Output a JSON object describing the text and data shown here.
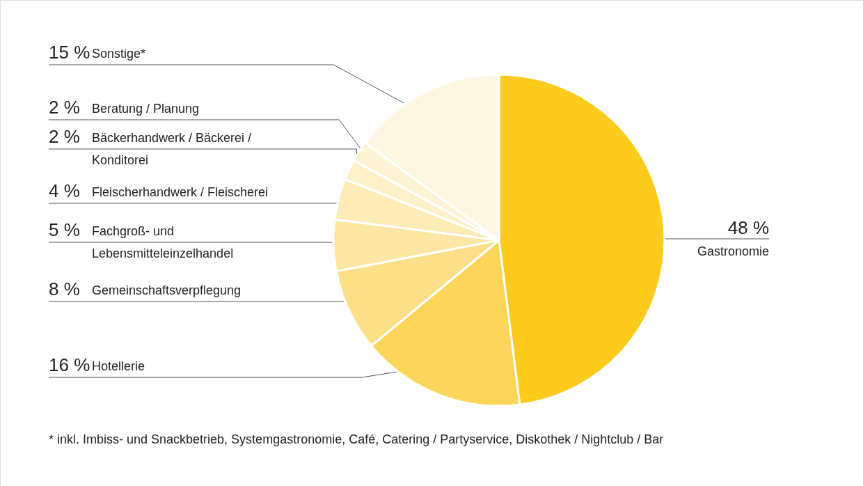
{
  "chart_data": {
    "type": "pie",
    "categories": [
      "Gastronomie",
      "Hotellerie",
      "Gemeinschaftsverpflegung",
      "Fachgroß- und\nLebensmitteleinzelhandel",
      "Fleischerhandwerk / Fleischerei",
      "Bäckerhandwerk / Bäckerei /\nKonditorei",
      "Beratung / Planung",
      "Sonstige*"
    ],
    "values": [
      48,
      16,
      8,
      5,
      4,
      2,
      2,
      15
    ],
    "colors": [
      "#fccb1e",
      "#fdd55a",
      "#fddf88",
      "#fee6a4",
      "#feebb5",
      "#fef0c8",
      "#fef3d4",
      "#fff6e1"
    ],
    "value_labels": [
      "48 %",
      "16 %",
      "8 %",
      "5 %",
      "4 %",
      "2 %",
      "2 %",
      "15 %"
    ],
    "annotations": [
      "* inkl. Imbiss- und Snackbetrieb, Systemgastronomie, Café, Catering / Partyservice, Diskothek / Nightclub / Bar"
    ]
  }
}
